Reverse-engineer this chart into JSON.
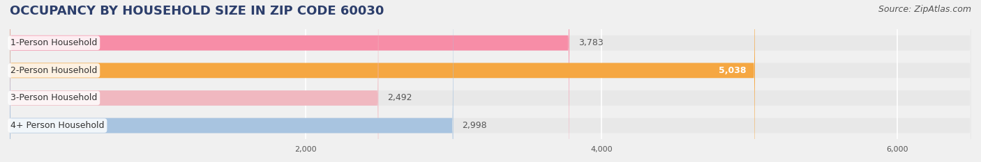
{
  "title": "OCCUPANCY BY HOUSEHOLD SIZE IN ZIP CODE 60030",
  "source": "Source: ZipAtlas.com",
  "categories": [
    "1-Person Household",
    "2-Person Household",
    "3-Person Household",
    "4+ Person Household"
  ],
  "values": [
    3783,
    5038,
    2492,
    2998
  ],
  "bar_colors": [
    "#f78da7",
    "#f5a742",
    "#f0b8c0",
    "#a8c4e0"
  ],
  "label_colors": [
    "#555555",
    "#ffffff",
    "#555555",
    "#555555"
  ],
  "xlim": [
    0,
    6500
  ],
  "xticks": [
    2000,
    4000,
    6000
  ],
  "xtick_labels": [
    "2,000",
    "4,000",
    "6,000"
  ],
  "background_color": "#f0f0f0",
  "bar_background_color": "#e8e8e8",
  "title_fontsize": 13,
  "source_fontsize": 9,
  "category_fontsize": 9,
  "value_fontsize": 9,
  "bar_height": 0.55
}
